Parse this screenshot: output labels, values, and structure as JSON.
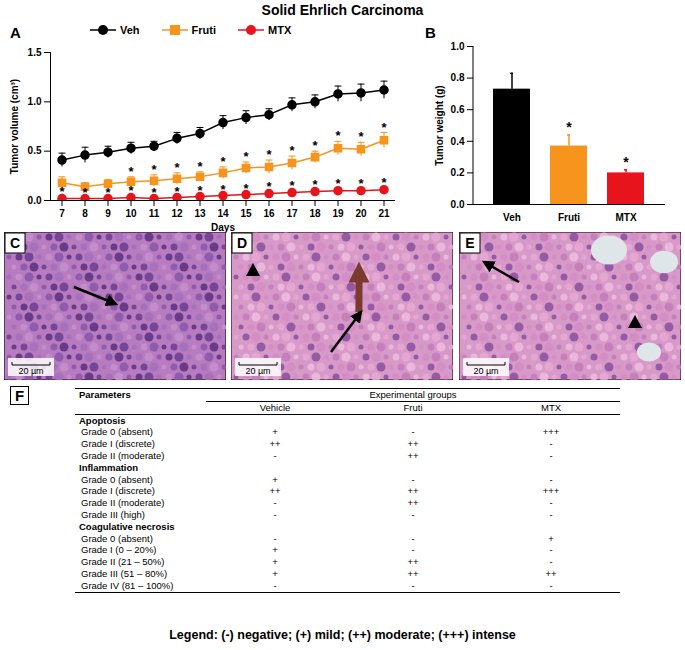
{
  "title": "Solid Ehrlich Carcinoma",
  "chart_data": [
    {
      "panel": "A",
      "type": "line",
      "x_label": "Days",
      "y_label": "Tumor volume (cm³)",
      "x": [
        7,
        8,
        9,
        10,
        11,
        12,
        13,
        14,
        15,
        16,
        17,
        18,
        19,
        20,
        21
      ],
      "xlim": [
        6.5,
        21.5
      ],
      "xticks": [
        7,
        8,
        9,
        10,
        11,
        12,
        13,
        14,
        15,
        16,
        17,
        18,
        19,
        20,
        21
      ],
      "ylim": [
        0,
        1.5
      ],
      "yticks": [
        {
          "value": 0,
          "label": "0.0"
        },
        {
          "value": 0.5,
          "label": "0.5"
        },
        {
          "value": 1,
          "label": "1.0"
        },
        {
          "value": 1.5,
          "label": "1.5"
        }
      ],
      "legend": "top",
      "series": [
        {
          "name": "Veh",
          "color": "#000000",
          "marker": "circle",
          "values": [
            0.41,
            0.46,
            0.49,
            0.53,
            0.55,
            0.63,
            0.68,
            0.79,
            0.84,
            0.87,
            0.97,
            1.0,
            1.08,
            1.09,
            1.12
          ],
          "errors": [
            0.07,
            0.08,
            0.06,
            0.06,
            0.05,
            0.06,
            0.06,
            0.07,
            0.07,
            0.06,
            0.07,
            0.07,
            0.08,
            0.09,
            0.09
          ],
          "significance": [
            null,
            null,
            null,
            null,
            null,
            null,
            null,
            null,
            null,
            null,
            null,
            null,
            null,
            null,
            null
          ]
        },
        {
          "name": "Fruti",
          "color": "#f7941d",
          "marker": "square",
          "values": [
            0.18,
            0.14,
            0.17,
            0.19,
            0.2,
            0.22,
            0.24,
            0.28,
            0.33,
            0.34,
            0.38,
            0.44,
            0.53,
            0.52,
            0.61
          ],
          "errors": [
            0.06,
            0.04,
            0.04,
            0.05,
            0.06,
            0.06,
            0.05,
            0.06,
            0.06,
            0.07,
            0.07,
            0.06,
            0.07,
            0.07,
            0.08
          ],
          "significance": [
            null,
            null,
            null,
            "*",
            "*",
            "*",
            "*",
            "*",
            "*",
            "*",
            "*",
            "*",
            "*",
            "*",
            "*"
          ]
        },
        {
          "name": "MTX",
          "color": "#e8141b",
          "marker": "circle",
          "values": [
            0.02,
            0.02,
            0.02,
            0.03,
            0.02,
            0.03,
            0.04,
            0.05,
            0.06,
            0.07,
            0.08,
            0.09,
            0.1,
            0.1,
            0.11
          ],
          "errors": [
            0.02,
            0.01,
            0.01,
            0.02,
            0.01,
            0.01,
            0.01,
            0.01,
            0.01,
            0.02,
            0.02,
            0.02,
            0.02,
            0.02,
            0.02
          ],
          "significance": [
            "*",
            "*",
            "*",
            "*",
            "*",
            "*",
            "*",
            "*",
            "*",
            "*",
            "*",
            "*",
            "*",
            "*",
            "*"
          ]
        }
      ]
    },
    {
      "panel": "B",
      "type": "bar",
      "y_label": "Tumor weight (g)",
      "categories": [
        "Veh",
        "Fruti",
        "MTX"
      ],
      "values": [
        0.73,
        0.37,
        0.2
      ],
      "errors": [
        0.1,
        0.07,
        0.02
      ],
      "significance": [
        null,
        "*",
        "*"
      ],
      "colors": [
        "#000000",
        "#f7941d",
        "#e8141b"
      ],
      "ylim": [
        0,
        1.0
      ],
      "yticks": [
        {
          "value": 0,
          "label": "0.0"
        },
        {
          "value": 0.2,
          "label": "0.2"
        },
        {
          "value": 0.4,
          "label": "0.4"
        },
        {
          "value": 0.6,
          "label": "0.6"
        },
        {
          "value": 0.8,
          "label": "0.8"
        },
        {
          "value": 1.0,
          "label": "1.0"
        }
      ]
    }
  ],
  "micrographs": [
    {
      "panel": "C",
      "scale_bar": "20 µm"
    },
    {
      "panel": "D",
      "scale_bar": "20 µm"
    },
    {
      "panel": "E",
      "scale_bar": "20 µm"
    }
  ],
  "table": {
    "panel": "F",
    "header": [
      "Parameters",
      "Experimental groups"
    ],
    "columns": [
      "Vehicle",
      "Fruti",
      "MTX"
    ],
    "sections": [
      {
        "name": "Apoptosis",
        "rows": [
          {
            "label": "Grade 0 (absent)",
            "cells": [
              "+",
              "-",
              "+++"
            ]
          },
          {
            "label": "Grade I (discrete)",
            "cells": [
              "++",
              "++",
              "-"
            ]
          },
          {
            "label": "Grade II (moderate)",
            "cells": [
              "-",
              "++",
              "-"
            ]
          }
        ]
      },
      {
        "name": "Inflammation",
        "rows": [
          {
            "label": "Grade 0 (absent)",
            "cells": [
              "+",
              "-",
              "-"
            ]
          },
          {
            "label": "Grade I (discrete)",
            "cells": [
              "++",
              "++",
              "+++"
            ]
          },
          {
            "label": "Grade II (moderate)",
            "cells": [
              "-",
              "++",
              "-"
            ]
          },
          {
            "label": "Grade III (high)",
            "cells": [
              "-",
              "-",
              "-"
            ]
          }
        ]
      },
      {
        "name": "Coagulative necrosis",
        "rows": [
          {
            "label": "Grade 0 (absent)",
            "cells": [
              "-",
              "-",
              "+"
            ]
          },
          {
            "label": "Grade I (0 – 20%)",
            "cells": [
              "+",
              "-",
              "-"
            ]
          },
          {
            "label": "Grade II (21 – 50%)",
            "cells": [
              "+",
              "++",
              "-"
            ]
          },
          {
            "label": "Grade III (51 – 80%)",
            "cells": [
              "+",
              "++",
              "++"
            ]
          },
          {
            "label": "Grade IV (81 – 100%)",
            "cells": [
              "-",
              "-",
              "-"
            ]
          }
        ]
      }
    ]
  },
  "legend_text": "Legend: (-) negative; (+) mild; (++) moderate; (+++) intense"
}
